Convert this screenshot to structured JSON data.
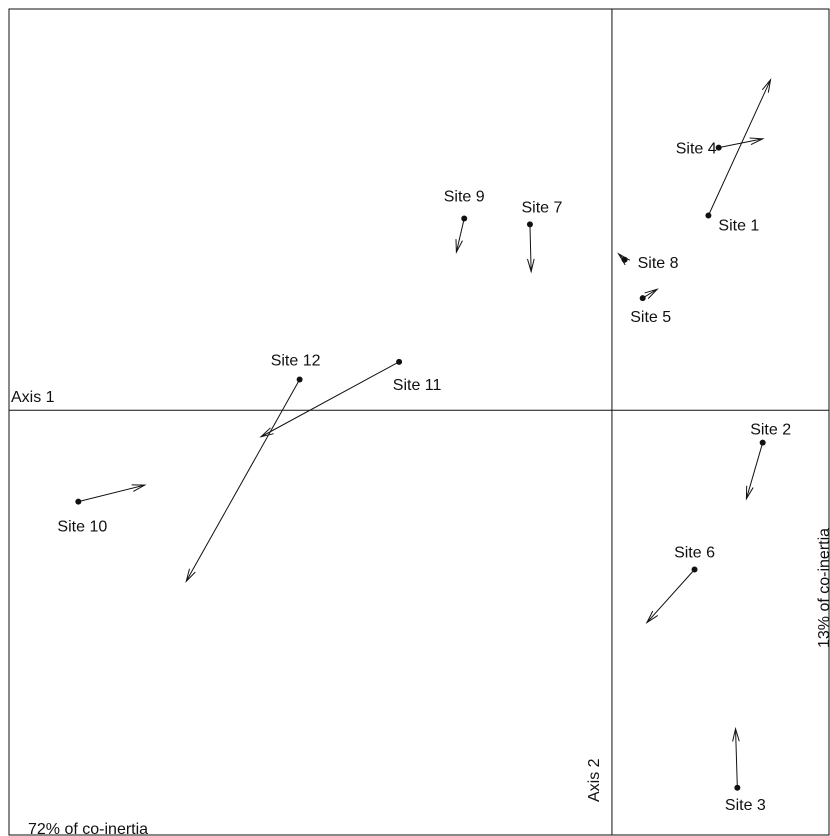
{
  "chart_data": {
    "type": "scatter",
    "title": "",
    "axes": {
      "horizontal_label": "Axis 1",
      "vertical_label": "Axis 2"
    },
    "inertia": {
      "axis1": "72% of co-inertia",
      "axis2": "13% of co-inertia"
    },
    "xlim": [
      -1.0,
      0.36
    ],
    "ylim": [
      -0.72,
      0.68
    ],
    "grid": false,
    "legend": "none",
    "colors": {
      "stroke": "#111111",
      "background": "#ffffff"
    },
    "sites": [
      {
        "label": "Site 1",
        "x": 0.16,
        "y": 0.33,
        "arrow_x": 0.263,
        "arrow_y": 0.56
      },
      {
        "label": "Site 2",
        "x": 0.25,
        "y": -0.055,
        "arrow_x": 0.223,
        "arrow_y": -0.15
      },
      {
        "label": "Site 3",
        "x": 0.208,
        "y": -0.64,
        "arrow_x": 0.205,
        "arrow_y": -0.54
      },
      {
        "label": "Site 4",
        "x": 0.177,
        "y": 0.445,
        "arrow_x": 0.25,
        "arrow_y": 0.46
      },
      {
        "label": "Site 5",
        "x": 0.051,
        "y": 0.19,
        "arrow_x": 0.075,
        "arrow_y": 0.205
      },
      {
        "label": "Site 6",
        "x": 0.137,
        "y": -0.27,
        "arrow_x": 0.058,
        "arrow_y": -0.36
      },
      {
        "label": "Site 7",
        "x": -0.136,
        "y": 0.315,
        "arrow_x": -0.134,
        "arrow_y": 0.235
      },
      {
        "label": "Site 8",
        "x": 0.021,
        "y": 0.255,
        "arrow_x": 0.011,
        "arrow_y": 0.265
      },
      {
        "label": "Site 9",
        "x": -0.245,
        "y": 0.325,
        "arrow_x": -0.258,
        "arrow_y": 0.268
      },
      {
        "label": "Site 10",
        "x": -0.885,
        "y": -0.155,
        "arrow_x": -0.775,
        "arrow_y": -0.127
      },
      {
        "label": "Site 11",
        "x": -0.353,
        "y": 0.082,
        "arrow_x": -0.582,
        "arrow_y": -0.045
      },
      {
        "label": "Site 12",
        "x": -0.518,
        "y": 0.052,
        "arrow_x": -0.706,
        "arrow_y": -0.29
      }
    ]
  }
}
